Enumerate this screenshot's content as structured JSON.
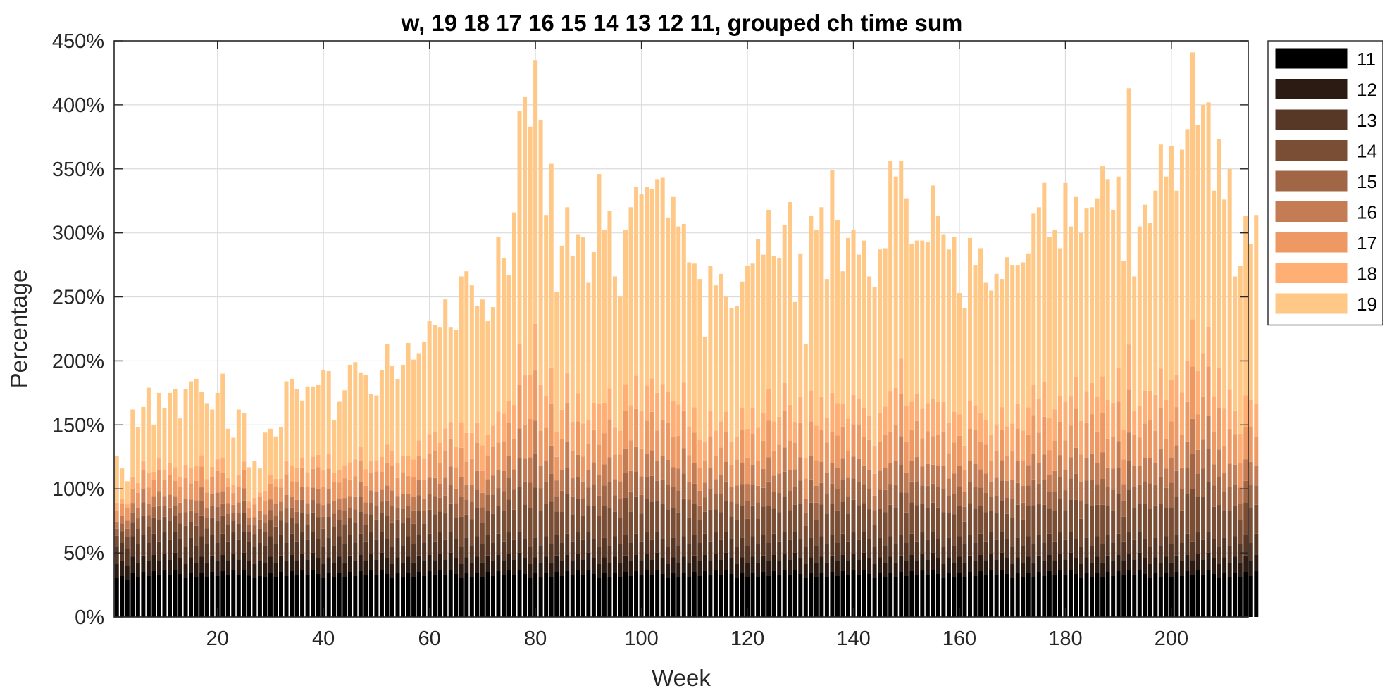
{
  "chart_data": {
    "type": "bar",
    "stacked": true,
    "title": "w, 19 18 17 16 15 14 13 12 11, grouped ch time sum",
    "xlabel": "Week",
    "ylabel": "Percentage",
    "xlim": [
      1,
      214
    ],
    "ylim": [
      0,
      450
    ],
    "xticks": [
      20,
      40,
      60,
      80,
      100,
      120,
      140,
      160,
      180,
      200
    ],
    "yticks": [
      0,
      50,
      100,
      150,
      200,
      250,
      300,
      350,
      400,
      450
    ],
    "ytick_suffix": "%",
    "grid": true,
    "legend_position": "outside-right-top",
    "legend_order": [
      "11",
      "12",
      "13",
      "14",
      "15",
      "16",
      "17",
      "18",
      "19"
    ],
    "series_colors": {
      "11": "#000000",
      "12": "#2b1b12",
      "13": "#573726",
      "14": "#7a4d35",
      "15": "#a06646",
      "16": "#c47c55",
      "17": "#ee9963",
      "18": "#ffae74",
      "19": "#ffc886"
    },
    "totals": [
      126,
      116,
      106,
      162,
      148,
      164,
      179,
      150,
      175,
      163,
      175,
      178,
      155,
      178,
      184,
      186,
      176,
      167,
      162,
      175,
      190,
      147,
      140,
      162,
      159,
      117,
      122,
      116,
      144,
      147,
      141,
      148,
      184,
      186,
      178,
      169,
      180,
      180,
      181,
      193,
      192,
      154,
      168,
      177,
      197,
      199,
      191,
      189,
      174,
      173,
      193,
      213,
      196,
      186,
      197,
      214,
      201,
      206,
      215,
      231,
      228,
      226,
      248,
      226,
      224,
      266,
      270,
      259,
      243,
      248,
      231,
      242,
      297,
      280,
      267,
      316,
      395,
      406,
      383,
      435,
      388,
      314,
      354,
      254,
      290,
      320,
      282,
      299,
      297,
      261,
      285,
      346,
      302,
      317,
      266,
      250,
      302,
      320,
      336,
      330,
      336,
      334,
      342,
      343,
      312,
      328,
      305,
      307,
      277,
      276,
      264,
      219,
      274,
      259,
      268,
      250,
      241,
      243,
      262,
      274,
      276,
      295,
      283,
      318,
      282,
      280,
      306,
      324,
      246,
      284,
      213,
      313,
      302,
      320,
      264,
      349,
      310,
      270,
      296,
      302,
      283,
      294,
      266,
      258,
      287,
      288,
      356,
      344,
      356,
      327,
      291,
      294,
      294,
      293,
      337,
      313,
      299,
      287,
      297,
      253,
      241,
      296,
      275,
      288,
      261,
      255,
      268,
      264,
      281,
      275,
      275,
      277,
      284,
      315,
      320,
      339,
      297,
      302,
      288,
      339,
      305,
      328,
      300,
      319,
      320,
      327,
      352,
      342,
      318,
      344,
      278,
      413,
      266,
      305,
      322,
      308,
      333,
      369,
      344,
      368,
      333,
      365,
      381,
      441,
      384,
      400,
      402,
      333,
      373,
      326,
      350,
      266,
      274,
      313,
      291,
      314
    ],
    "bottom_group_fraction": 0.45,
    "mid_group_fraction": 0.22,
    "note_stack": "each bar is split bottom-to-top into series 11..19"
  }
}
